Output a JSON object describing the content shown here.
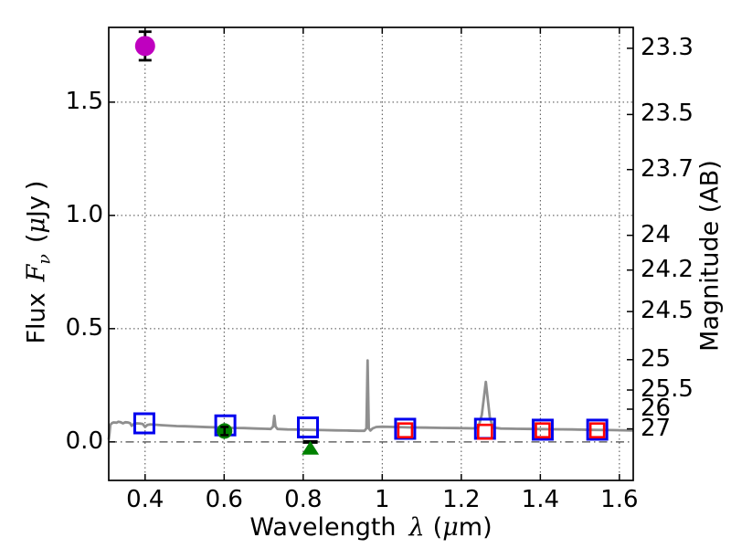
{
  "chart_data": {
    "type": "line",
    "title": "",
    "xlabel": "Wavelength λ (μm)",
    "ylabel_left": "Flux Fν ( μJy )",
    "ylabel_right": "Magnitude (AB)",
    "xlabel_parts": {
      "prefix": "Wavelength",
      "lambda": "λ",
      "open": "(",
      "mu": "μ",
      "close": "m)"
    },
    "ylabel_left_parts": {
      "prefix": "Flux",
      "symbol": "F",
      "subscript": "ν",
      "open": "(",
      "mu": "μ",
      "unit": "Jy",
      "close": ")"
    },
    "xlim": [
      0.308,
      1.635
    ],
    "ylim_flux": [
      -0.17,
      1.83
    ],
    "x_ticks": {
      "values": [
        0.4,
        0.6,
        0.8,
        1.0,
        1.2,
        1.4,
        1.6
      ],
      "labels": [
        "0.4",
        "0.6",
        "0.8",
        "1",
        "1.2",
        "1.4",
        "1.6"
      ]
    },
    "y_ticks_left": {
      "values": [
        0.0,
        0.5,
        1.0,
        1.5
      ],
      "labels": [
        "0.0",
        "0.5",
        "1.0",
        "1.5"
      ]
    },
    "y_ticks_right": {
      "magnitudes": [
        23.3,
        23.5,
        23.7,
        24,
        24.2,
        24.5,
        25,
        25.5,
        26,
        27
      ],
      "labels": [
        "23.3",
        "23.5",
        "23.7",
        "24",
        "24.2",
        "24.5",
        "25",
        "25.5",
        "26",
        "27"
      ],
      "ab_zeropoint_ujy": 23.9
    },
    "grid": {
      "vertical_dotted": [
        0.4,
        0.6,
        0.8,
        1.0,
        1.2,
        1.4,
        1.6
      ],
      "horizontal_dotted": [
        0.5,
        1.0,
        1.5
      ],
      "horizontal_dashdot": [
        0.0
      ]
    },
    "legend": "none",
    "colors": {
      "spectrum": "#8f8f8f",
      "blue_square": "#0000ee",
      "red_square": "#ff0000",
      "green": "#008000",
      "magenta": "#bf00bf",
      "errorbar": "#000000",
      "grid": "#4a4a4a",
      "spine": "#000000"
    },
    "spectrum_points": [
      [
        0.308,
        0.01
      ],
      [
        0.31,
        0.04
      ],
      [
        0.312,
        0.075
      ],
      [
        0.316,
        0.083
      ],
      [
        0.32,
        0.086
      ],
      [
        0.328,
        0.085
      ],
      [
        0.332,
        0.089
      ],
      [
        0.338,
        0.087
      ],
      [
        0.344,
        0.082
      ],
      [
        0.35,
        0.087
      ],
      [
        0.356,
        0.086
      ],
      [
        0.362,
        0.083
      ],
      [
        0.366,
        0.071
      ],
      [
        0.372,
        0.08
      ],
      [
        0.38,
        0.082
      ],
      [
        0.388,
        0.081
      ],
      [
        0.394,
        0.079
      ],
      [
        0.4,
        0.066
      ],
      [
        0.406,
        0.075
      ],
      [
        0.412,
        0.077
      ],
      [
        0.425,
        0.076
      ],
      [
        0.44,
        0.074
      ],
      [
        0.46,
        0.072
      ],
      [
        0.48,
        0.07
      ],
      [
        0.5,
        0.069
      ],
      [
        0.53,
        0.067
      ],
      [
        0.56,
        0.065
      ],
      [
        0.59,
        0.064
      ],
      [
        0.62,
        0.062
      ],
      [
        0.65,
        0.061
      ],
      [
        0.68,
        0.059
      ],
      [
        0.705,
        0.058
      ],
      [
        0.718,
        0.057
      ],
      [
        0.724,
        0.068
      ],
      [
        0.727,
        0.115
      ],
      [
        0.73,
        0.068
      ],
      [
        0.735,
        0.057
      ],
      [
        0.76,
        0.055
      ],
      [
        0.79,
        0.054
      ],
      [
        0.82,
        0.053
      ],
      [
        0.85,
        0.052
      ],
      [
        0.88,
        0.051
      ],
      [
        0.91,
        0.05
      ],
      [
        0.94,
        0.049
      ],
      [
        0.955,
        0.049
      ],
      [
        0.96,
        0.06
      ],
      [
        0.963,
        0.36
      ],
      [
        0.966,
        0.06
      ],
      [
        0.97,
        0.05
      ],
      [
        0.976,
        0.06
      ],
      [
        0.985,
        0.066
      ],
      [
        1.0,
        0.067
      ],
      [
        1.03,
        0.066
      ],
      [
        1.07,
        0.064
      ],
      [
        1.11,
        0.063
      ],
      [
        1.15,
        0.062
      ],
      [
        1.19,
        0.061
      ],
      [
        1.23,
        0.06
      ],
      [
        1.243,
        0.063
      ],
      [
        1.252,
        0.12
      ],
      [
        1.262,
        0.265
      ],
      [
        1.272,
        0.11
      ],
      [
        1.28,
        0.063
      ],
      [
        1.3,
        0.059
      ],
      [
        1.34,
        0.058
      ],
      [
        1.38,
        0.057
      ],
      [
        1.43,
        0.056
      ],
      [
        1.48,
        0.055
      ],
      [
        1.53,
        0.053
      ],
      [
        1.58,
        0.052
      ],
      [
        1.635,
        0.05
      ]
    ],
    "blue_squares": [
      {
        "x": 0.398,
        "flux": 0.082
      },
      {
        "x": 0.603,
        "flux": 0.073
      },
      {
        "x": 0.812,
        "flux": 0.064
      },
      {
        "x": 1.058,
        "flux": 0.058
      },
      {
        "x": 1.26,
        "flux": 0.058
      },
      {
        "x": 1.406,
        "flux": 0.054
      },
      {
        "x": 1.544,
        "flux": 0.054
      }
    ],
    "red_squares": [
      {
        "x": 1.058,
        "flux": 0.051
      },
      {
        "x": 1.26,
        "flux": 0.045
      },
      {
        "x": 1.406,
        "flux": 0.051
      },
      {
        "x": 1.544,
        "flux": 0.051
      }
    ],
    "green_circle": {
      "x": 0.601,
      "flux": 0.048,
      "err": 0.018
    },
    "green_triangle": {
      "x": 0.818,
      "flux": -0.028,
      "cap_flux": 0.0
    },
    "magenta_circle": {
      "x": 0.4,
      "flux": 1.748,
      "err": 0.063
    }
  }
}
